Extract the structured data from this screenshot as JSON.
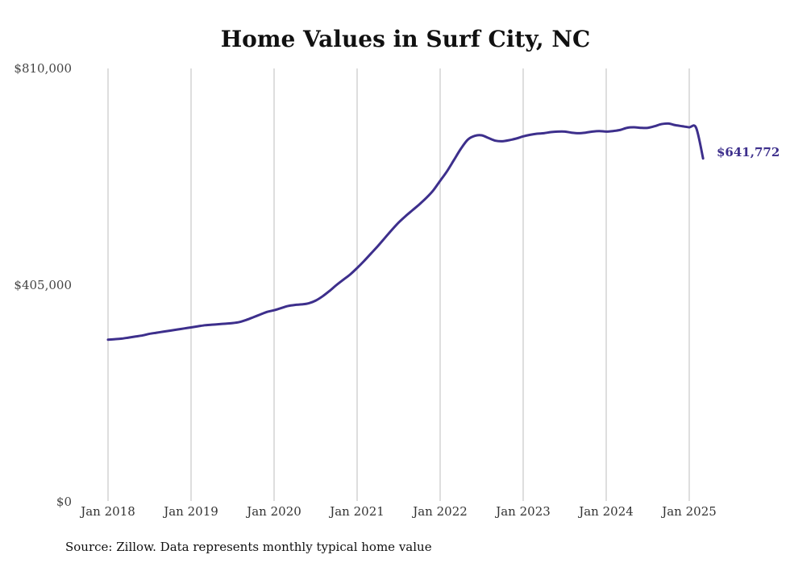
{
  "chart_data": {
    "type": "line",
    "title": "Home Values in Surf City, NC",
    "source": "Source: Zillow. Data represents monthly typical home value",
    "xlabel": "",
    "ylabel": "",
    "ylim": [
      0,
      810000
    ],
    "xlim": [
      "2018-01",
      "2025-03"
    ],
    "yticks": [
      0,
      405000,
      810000
    ],
    "ytick_labels": [
      "$0",
      "$405,000",
      "$810,000"
    ],
    "xticks": [
      "2018-01",
      "2019-01",
      "2020-01",
      "2021-01",
      "2022-01",
      "2023-01",
      "2024-01",
      "2025-01"
    ],
    "xtick_labels": [
      "Jan 2018",
      "Jan 2019",
      "Jan 2020",
      "Jan 2021",
      "Jan 2022",
      "Jan 2023",
      "Jan 2024",
      "Jan 2025"
    ],
    "grid": "vertical",
    "line_color": "#3d2f8c",
    "end_label": "$641,772",
    "series": [
      {
        "x": [
          "2018-01",
          "2018-02",
          "2018-03",
          "2018-04",
          "2018-05",
          "2018-06",
          "2018-07",
          "2018-08",
          "2018-09",
          "2018-10",
          "2018-11",
          "2018-12",
          "2019-01",
          "2019-02",
          "2019-03",
          "2019-04",
          "2019-05",
          "2019-06",
          "2019-07",
          "2019-08",
          "2019-09",
          "2019-10",
          "2019-11",
          "2019-12",
          "2020-01",
          "2020-02",
          "2020-03",
          "2020-04",
          "2020-05",
          "2020-06",
          "2020-07",
          "2020-08",
          "2020-09",
          "2020-10",
          "2020-11",
          "2020-12",
          "2021-01",
          "2021-02",
          "2021-03",
          "2021-04",
          "2021-05",
          "2021-06",
          "2021-07",
          "2021-08",
          "2021-09",
          "2021-10",
          "2021-11",
          "2021-12",
          "2022-01",
          "2022-02",
          "2022-03",
          "2022-04",
          "2022-05",
          "2022-06",
          "2022-07",
          "2022-08",
          "2022-09",
          "2022-10",
          "2022-11",
          "2022-12",
          "2023-01",
          "2023-02",
          "2023-03",
          "2023-04",
          "2023-05",
          "2023-06",
          "2023-07",
          "2023-08",
          "2023-09",
          "2023-10",
          "2023-11",
          "2023-12",
          "2024-01",
          "2024-02",
          "2024-03",
          "2024-04",
          "2024-05",
          "2024-06",
          "2024-07",
          "2024-08",
          "2024-09",
          "2024-10",
          "2024-11",
          "2024-12",
          "2025-01",
          "2025-02",
          "2025-03"
        ],
        "values": [
          303000,
          304000,
          305000,
          307000,
          309000,
          311000,
          314000,
          316000,
          318000,
          320000,
          322000,
          324000,
          326000,
          328000,
          330000,
          331000,
          332000,
          333000,
          334000,
          336000,
          340000,
          345000,
          350000,
          355000,
          358000,
          362000,
          366000,
          368000,
          369000,
          371000,
          376000,
          384000,
          394000,
          405000,
          415000,
          425000,
          437000,
          450000,
          464000,
          478000,
          493000,
          508000,
          522000,
          534000,
          545000,
          556000,
          568000,
          582000,
          600000,
          618000,
          639000,
          660000,
          677000,
          684000,
          685000,
          680000,
          675000,
          674000,
          676000,
          679000,
          683000,
          686000,
          688000,
          689000,
          691000,
          692000,
          692000,
          690000,
          689000,
          690000,
          692000,
          693000,
          692000,
          693000,
          695000,
          699000,
          700000,
          699000,
          699000,
          702000,
          706000,
          707000,
          704000,
          702000,
          700000,
          699000,
          641772
        ]
      }
    ]
  }
}
